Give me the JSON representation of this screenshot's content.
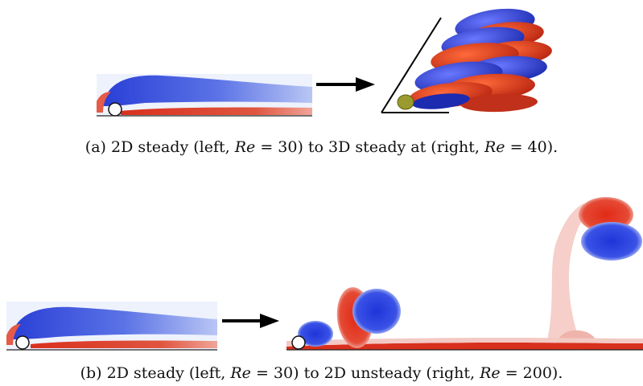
{
  "captions": {
    "a": {
      "label": "(a) 2D steady (left, ",
      "re_symbol": "Re",
      "eq1": " = 30) to 3D steady at (right, ",
      "re_symbol_2": "Re",
      "eq2": " = 40)."
    },
    "b": {
      "label": "(b) 2D steady (left, ",
      "re_symbol": "Re",
      "eq1": " = 30) to 2D unsteady (right, ",
      "re_symbol_2": "Re",
      "eq2": " = 200)."
    }
  },
  "colors": {
    "negative_vorticity": "#2a3fd6",
    "positive_vorticity": "#d9301e",
    "light_blue": "#c9d4f5",
    "light_red": "#f3c9c4",
    "cylinder_3d": "#9a9a2e"
  }
}
